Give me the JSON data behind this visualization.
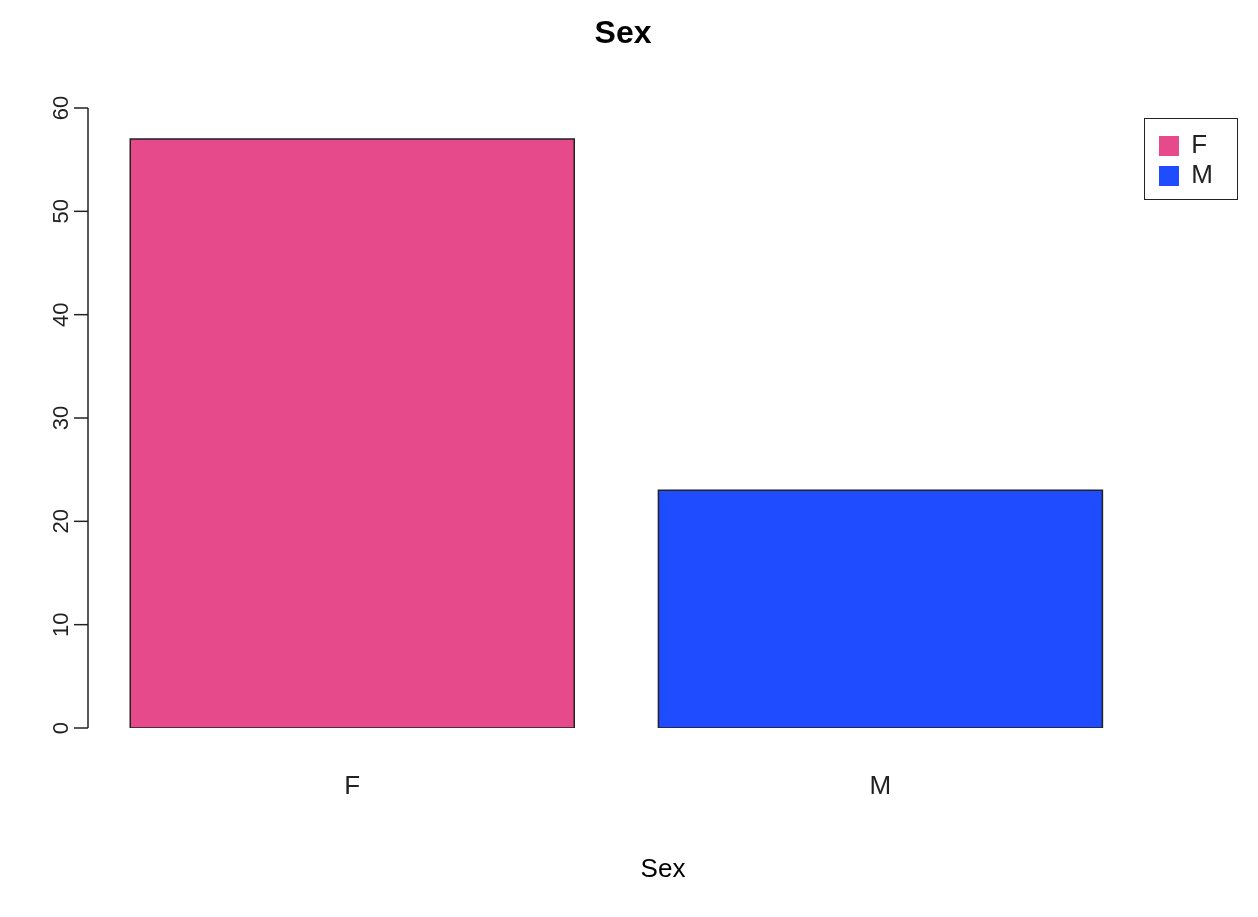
{
  "chart_data": {
    "type": "bar",
    "title": "Sex",
    "xlabel": "Sex",
    "categories": [
      "F",
      "M"
    ],
    "series": [
      {
        "name": "F",
        "color": "#e64a8b",
        "values": [
          57,
          null
        ]
      },
      {
        "name": "M",
        "color": "#1f4cfe",
        "values": [
          null,
          23
        ]
      }
    ],
    "stacked": true,
    "ylim": [
      0,
      60
    ],
    "yticks": [
      0,
      10,
      20,
      30,
      40,
      50,
      60
    ],
    "grid": false,
    "legend": "top right"
  }
}
